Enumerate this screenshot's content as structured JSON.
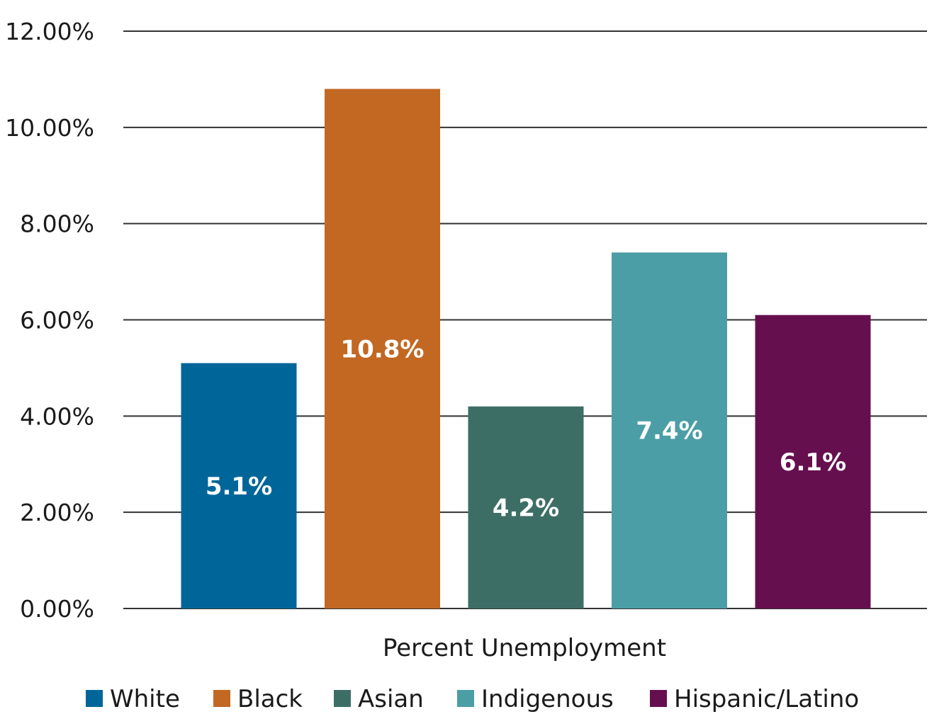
{
  "chart_data": {
    "type": "bar",
    "title": "",
    "xlabel": "Percent Unemployment",
    "ylabel": "",
    "ylim": [
      0,
      12
    ],
    "yticks": [
      0,
      2,
      4,
      6,
      8,
      10,
      12
    ],
    "ytick_labels": [
      "0.00%",
      "2.00%",
      "4.00%",
      "6.00%",
      "8.00%",
      "10.00%",
      "12.00%"
    ],
    "grid": true,
    "legend_position": "bottom",
    "series": [
      {
        "name": "White",
        "value": 5.1,
        "label": "5.1%",
        "color": "#006699"
      },
      {
        "name": "Black",
        "value": 10.8,
        "label": "10.8%",
        "color": "#c26823"
      },
      {
        "name": "Asian",
        "value": 4.2,
        "label": "4.2%",
        "color": "#3d6e66"
      },
      {
        "name": "Indigenous",
        "value": 7.4,
        "label": "7.4%",
        "color": "#4b9ea6"
      },
      {
        "name": "Hispanic/Latino",
        "value": 6.1,
        "label": "6.1%",
        "color": "#660f4f"
      }
    ]
  }
}
